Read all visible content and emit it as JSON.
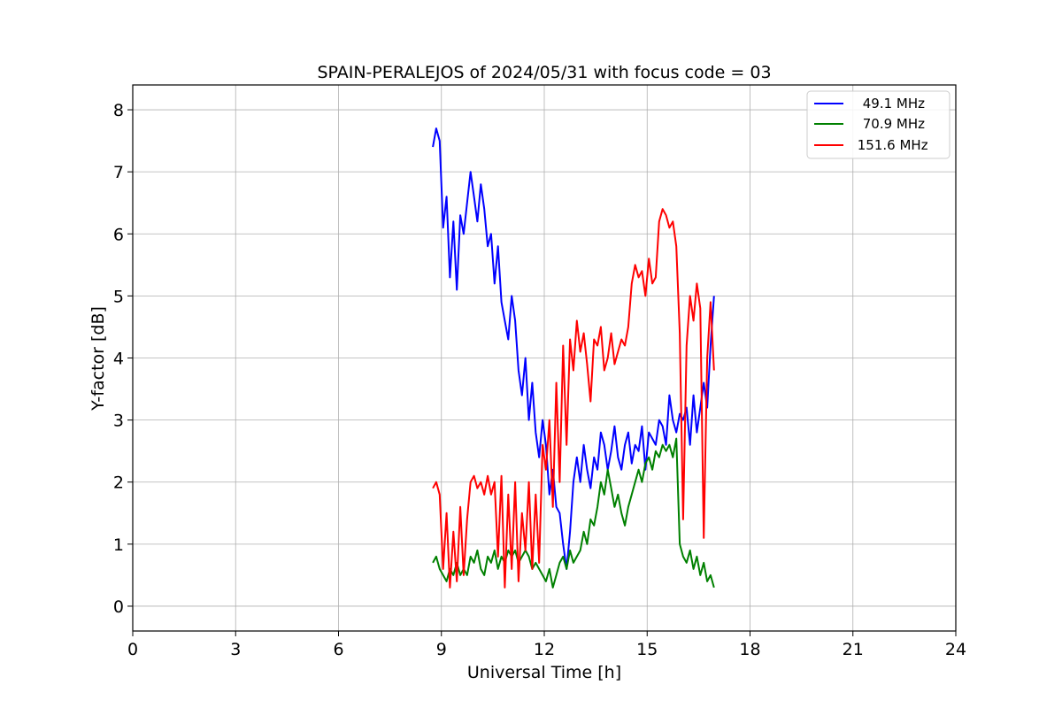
{
  "chart_data": {
    "type": "line",
    "title": "SPAIN-PERALEJOS of 2024/05/31 with focus code = 03",
    "xlabel": "Universal Time [h]",
    "ylabel": "Y-factor [dB]",
    "xlim": [
      0,
      24
    ],
    "ylim": [
      -0.4,
      8.4
    ],
    "xticks": [
      0,
      3,
      6,
      9,
      12,
      15,
      18,
      21,
      24
    ],
    "xtick_labels": [
      "0",
      "3",
      "6",
      "9",
      "12",
      "15",
      "18",
      "21",
      "24"
    ],
    "yticks": [
      0,
      1,
      2,
      3,
      4,
      5,
      6,
      7,
      8
    ],
    "ytick_labels": [
      "0",
      "1",
      "2",
      "3",
      "4",
      "5",
      "6",
      "7",
      "8"
    ],
    "grid": true,
    "legend_position": "top-right",
    "series": [
      {
        "name": " 49.1 MHz",
        "color": "#0000ff",
        "x": [
          8.75,
          8.85,
          8.95,
          9.05,
          9.15,
          9.25,
          9.35,
          9.45,
          9.55,
          9.65,
          9.75,
          9.85,
          9.95,
          10.05,
          10.15,
          10.25,
          10.35,
          10.45,
          10.55,
          10.65,
          10.75,
          10.85,
          10.95,
          11.05,
          11.15,
          11.25,
          11.35,
          11.45,
          11.55,
          11.65,
          11.75,
          11.85,
          11.95,
          12.05,
          12.15,
          12.25,
          12.35,
          12.45,
          12.55,
          12.65,
          12.75,
          12.85,
          12.95,
          13.05,
          13.15,
          13.25,
          13.35,
          13.45,
          13.55,
          13.65,
          13.75,
          13.85,
          13.95,
          14.05,
          14.15,
          14.25,
          14.35,
          14.45,
          14.55,
          14.65,
          14.75,
          14.85,
          14.95,
          15.05,
          15.15,
          15.25,
          15.35,
          15.45,
          15.55,
          15.65,
          15.75,
          15.85,
          15.95,
          16.05,
          16.15,
          16.25,
          16.35,
          16.45,
          16.55,
          16.65,
          16.75,
          16.85,
          16.95
        ],
        "values": [
          7.4,
          7.7,
          7.5,
          6.1,
          6.6,
          5.3,
          6.2,
          5.1,
          6.3,
          6.0,
          6.5,
          7.0,
          6.6,
          6.2,
          6.8,
          6.4,
          5.8,
          6.0,
          5.2,
          5.8,
          4.9,
          4.6,
          4.3,
          5.0,
          4.6,
          3.8,
          3.4,
          4.0,
          3.0,
          3.6,
          2.8,
          2.4,
          3.0,
          2.6,
          1.8,
          2.2,
          1.6,
          1.5,
          1.0,
          0.6,
          1.2,
          2.0,
          2.4,
          2.0,
          2.6,
          2.2,
          1.9,
          2.4,
          2.2,
          2.8,
          2.6,
          2.2,
          2.5,
          2.9,
          2.4,
          2.2,
          2.6,
          2.8,
          2.3,
          2.6,
          2.5,
          2.9,
          2.2,
          2.8,
          2.7,
          2.6,
          3.0,
          2.9,
          2.6,
          3.4,
          3.0,
          2.8,
          3.1,
          3.0,
          3.2,
          2.6,
          3.4,
          2.8,
          3.2,
          3.6,
          3.2,
          4.2,
          5.0
        ]
      },
      {
        "name": " 70.9 MHz",
        "color": "#008000",
        "x": [
          8.75,
          8.85,
          8.95,
          9.05,
          9.15,
          9.25,
          9.35,
          9.45,
          9.55,
          9.65,
          9.75,
          9.85,
          9.95,
          10.05,
          10.15,
          10.25,
          10.35,
          10.45,
          10.55,
          10.65,
          10.75,
          10.85,
          10.95,
          11.05,
          11.15,
          11.25,
          11.35,
          11.45,
          11.55,
          11.65,
          11.75,
          11.85,
          11.95,
          12.05,
          12.15,
          12.25,
          12.35,
          12.45,
          12.55,
          12.65,
          12.75,
          12.85,
          12.95,
          13.05,
          13.15,
          13.25,
          13.35,
          13.45,
          13.55,
          13.65,
          13.75,
          13.85,
          13.95,
          14.05,
          14.15,
          14.25,
          14.35,
          14.45,
          14.55,
          14.65,
          14.75,
          14.85,
          14.95,
          15.05,
          15.15,
          15.25,
          15.35,
          15.45,
          15.55,
          15.65,
          15.75,
          15.85,
          15.95,
          16.05,
          16.15,
          16.25,
          16.35,
          16.45,
          16.55,
          16.65,
          16.75,
          16.85,
          16.95
        ],
        "values": [
          0.7,
          0.8,
          0.6,
          0.5,
          0.4,
          0.6,
          0.5,
          0.7,
          0.5,
          0.6,
          0.5,
          0.8,
          0.7,
          0.9,
          0.6,
          0.5,
          0.8,
          0.7,
          0.9,
          0.6,
          0.8,
          0.7,
          0.9,
          0.8,
          0.9,
          0.7,
          0.8,
          0.9,
          0.8,
          0.6,
          0.7,
          0.6,
          0.5,
          0.4,
          0.6,
          0.3,
          0.5,
          0.7,
          0.8,
          0.6,
          0.9,
          0.7,
          0.8,
          0.9,
          1.2,
          1.0,
          1.4,
          1.3,
          1.6,
          2.0,
          1.8,
          2.2,
          1.9,
          1.6,
          1.8,
          1.5,
          1.3,
          1.6,
          1.8,
          2.0,
          2.2,
          2.0,
          2.3,
          2.4,
          2.2,
          2.5,
          2.4,
          2.6,
          2.5,
          2.6,
          2.4,
          2.7,
          1.0,
          0.8,
          0.7,
          0.9,
          0.6,
          0.8,
          0.5,
          0.7,
          0.4,
          0.5,
          0.3
        ]
      },
      {
        "name": " 151.6 MHz",
        "color": "#ff0000",
        "x": [
          8.75,
          8.85,
          8.95,
          9.05,
          9.15,
          9.25,
          9.35,
          9.45,
          9.55,
          9.65,
          9.75,
          9.85,
          9.95,
          10.05,
          10.15,
          10.25,
          10.35,
          10.45,
          10.55,
          10.65,
          10.75,
          10.85,
          10.95,
          11.05,
          11.15,
          11.25,
          11.35,
          11.45,
          11.55,
          11.65,
          11.75,
          11.85,
          11.95,
          12.05,
          12.15,
          12.25,
          12.35,
          12.45,
          12.55,
          12.65,
          12.75,
          12.85,
          12.95,
          13.05,
          13.15,
          13.25,
          13.35,
          13.45,
          13.55,
          13.65,
          13.75,
          13.85,
          13.95,
          14.05,
          14.15,
          14.25,
          14.35,
          14.45,
          14.55,
          14.65,
          14.75,
          14.85,
          14.95,
          15.05,
          15.15,
          15.25,
          15.35,
          15.45,
          15.55,
          15.65,
          15.75,
          15.85,
          15.95,
          16.05,
          16.15,
          16.25,
          16.35,
          16.45,
          16.55,
          16.65,
          16.75,
          16.85,
          16.95
        ],
        "values": [
          1.9,
          2.0,
          1.8,
          0.6,
          1.5,
          0.3,
          1.2,
          0.4,
          1.6,
          0.5,
          1.4,
          2.0,
          2.1,
          1.9,
          2.0,
          1.8,
          2.1,
          1.8,
          2.0,
          0.8,
          2.1,
          0.3,
          1.8,
          0.6,
          2.0,
          0.4,
          1.5,
          0.9,
          2.0,
          0.6,
          1.8,
          0.7,
          2.6,
          2.2,
          3.0,
          1.6,
          3.6,
          2.0,
          4.2,
          2.6,
          4.3,
          3.8,
          4.6,
          4.1,
          4.4,
          3.9,
          3.3,
          4.3,
          4.2,
          4.5,
          3.8,
          4.0,
          4.4,
          3.9,
          4.1,
          4.3,
          4.2,
          4.5,
          5.2,
          5.5,
          5.3,
          5.4,
          5.0,
          5.6,
          5.2,
          5.3,
          6.2,
          6.4,
          6.3,
          6.1,
          6.2,
          5.8,
          4.4,
          1.4,
          4.2,
          5.0,
          4.6,
          5.2,
          4.8,
          1.1,
          4.0,
          4.9,
          3.8
        ]
      }
    ]
  }
}
